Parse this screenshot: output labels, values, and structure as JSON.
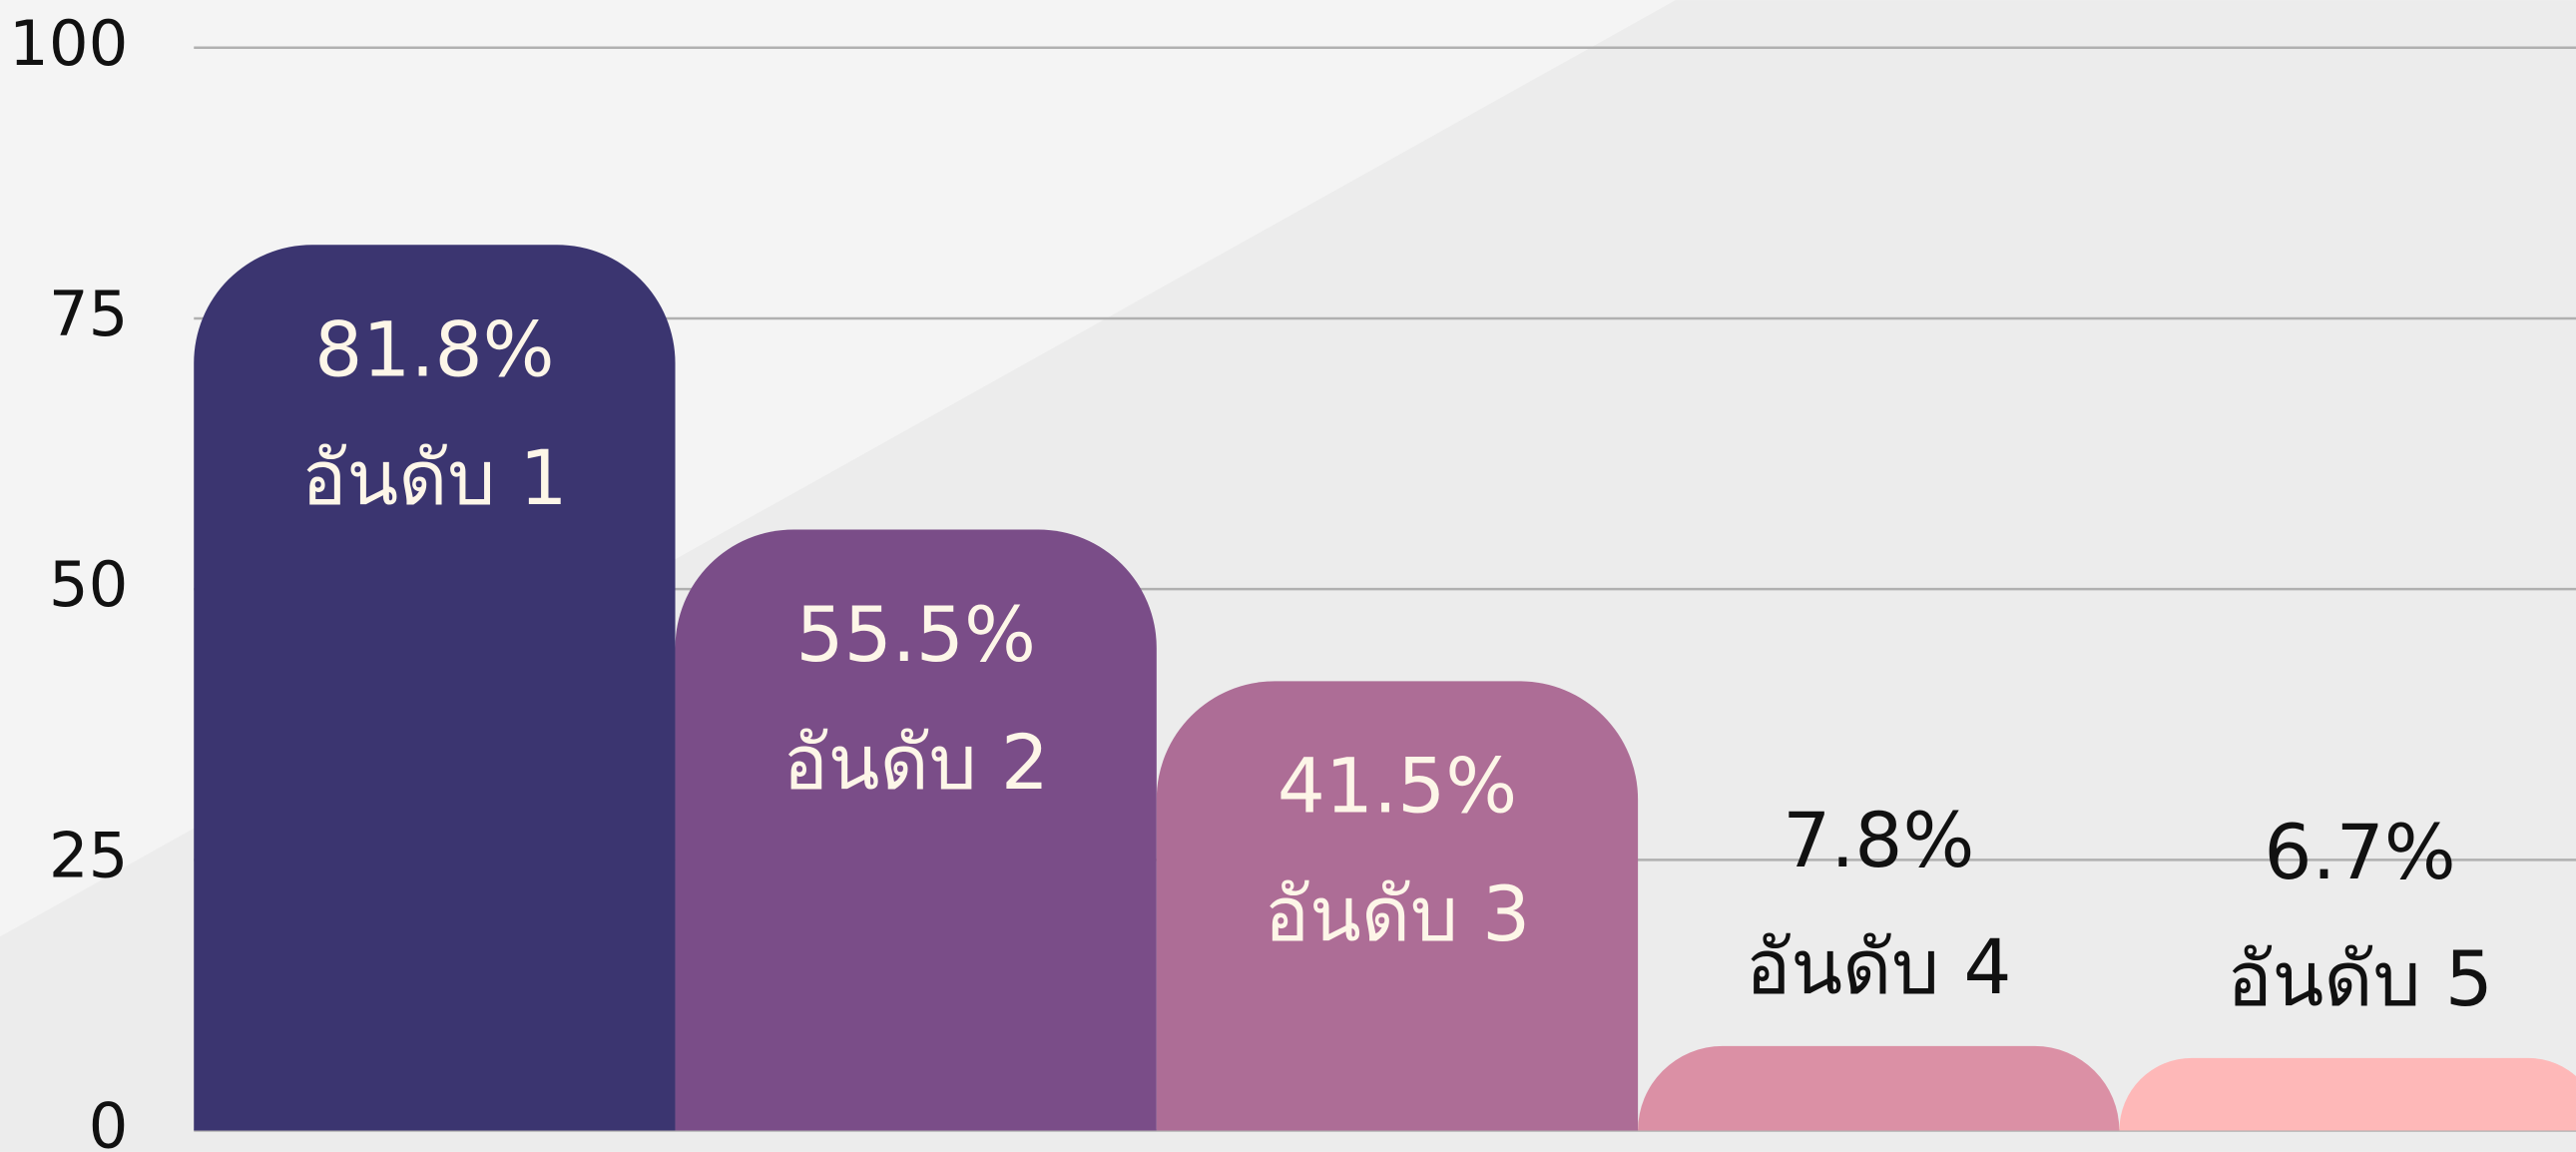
{
  "chart_data": {
    "type": "bar",
    "categories": [
      "อันดับ 1",
      "อันดับ 2",
      "อันดับ 3",
      "อันดับ 4",
      "อันดับ 5"
    ],
    "values": [
      81.8,
      55.5,
      41.5,
      7.8,
      6.7
    ],
    "value_labels": [
      "81.8%",
      "55.5%",
      "41.5%",
      "7.8%",
      "6.7%"
    ],
    "colors": [
      "#3b3570",
      "#7a4d88",
      "#ad6d96",
      "#db90a5",
      "#feb8b8"
    ],
    "ylim": [
      0,
      100
    ],
    "yticks": [
      0,
      25,
      50,
      75,
      100
    ],
    "grid": true
  }
}
